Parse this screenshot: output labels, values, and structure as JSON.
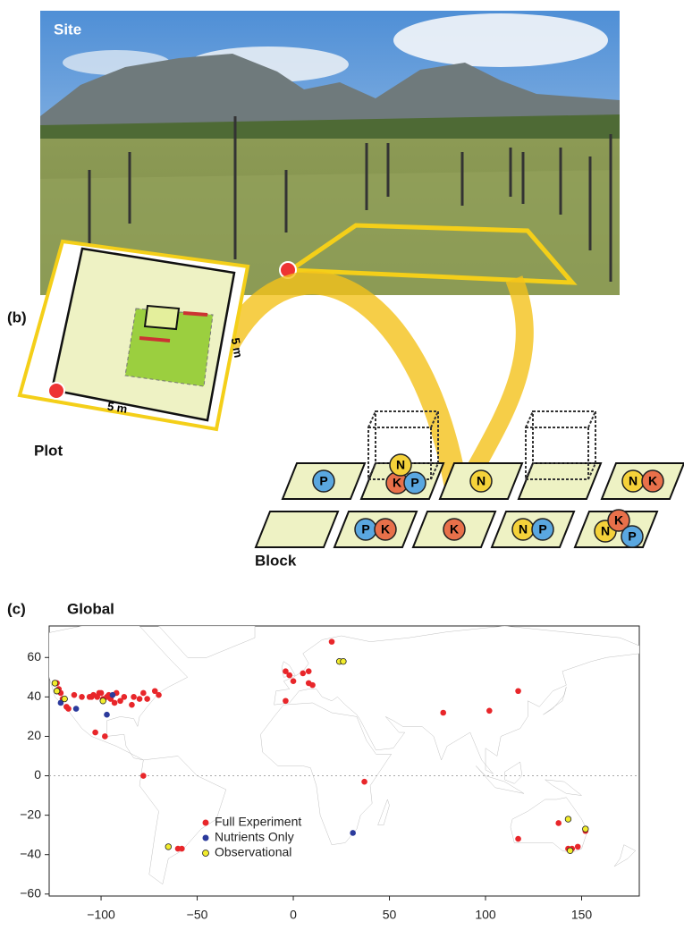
{
  "panel_a": {
    "label": "Site"
  },
  "panel_b": {
    "label": "(b)",
    "plot_label": "Plot",
    "plot_dims": [
      "5 m",
      "5 m"
    ],
    "block_label": "Block",
    "block_plots": [
      [
        "P"
      ],
      [
        "K",
        "N",
        "P"
      ],
      [
        "N"
      ],
      [],
      [
        "N",
        "K"
      ],
      [],
      [
        "P",
        "K"
      ],
      [
        "K"
      ],
      [
        "N",
        "P"
      ],
      [
        "N",
        "K",
        "P"
      ]
    ]
  },
  "chart_data": {
    "type": "scatter",
    "panel_label": "(c)",
    "title": "Global",
    "xlim": [
      -127,
      180
    ],
    "ylim": [
      -61,
      76
    ],
    "xticks": [
      {
        "value": -100,
        "label": "−100"
      },
      {
        "value": -50,
        "label": "−50"
      },
      0,
      50,
      100,
      150
    ],
    "yticks": [
      {
        "value": -60,
        "label": "−60"
      },
      {
        "value": -40,
        "label": "−40"
      },
      {
        "value": -20,
        "label": "−20"
      },
      0,
      20,
      40,
      60
    ],
    "legend": "lower-left",
    "series": [
      {
        "name": "Full Experiment",
        "color": "#e8262a",
        "x": [
          -123,
          -122,
          -121,
          -120,
          -118,
          -117,
          -114,
          -110,
          -106,
          -105,
          -104,
          -102,
          -101,
          -100,
          -99,
          -97,
          -96,
          -95,
          -93,
          -92,
          -90,
          -88,
          -84,
          -83,
          -80,
          -78,
          -76,
          -72,
          -70,
          -103,
          -98,
          -78,
          -58,
          -60,
          -4,
          -4,
          -2,
          0,
          5,
          8,
          8,
          10,
          20,
          37,
          78,
          102,
          117,
          117,
          138,
          143,
          145,
          148,
          152
        ],
        "values": [
          47,
          44,
          42,
          39,
          35,
          34,
          41,
          40,
          40,
          40,
          41,
          40,
          42,
          42,
          39,
          40,
          41,
          39,
          37,
          42,
          38,
          40,
          36,
          40,
          39,
          42,
          39,
          43,
          41,
          22,
          20,
          0,
          -37,
          -37,
          38,
          53,
          51,
          48,
          52,
          53,
          47,
          46,
          68,
          -3,
          32,
          33,
          43,
          -32,
          -24,
          -37,
          -37,
          -36,
          -28
        ]
      },
      {
        "name": "Nutrients Only",
        "color": "#2b3a9c",
        "x": [
          -113,
          -97,
          -94,
          -121,
          31
        ],
        "values": [
          34,
          31,
          41,
          37,
          -29
        ]
      },
      {
        "name": "Observational",
        "color": "#f2ec2c",
        "x": [
          -124,
          -123,
          -119,
          -99,
          -65,
          24,
          26,
          143,
          144,
          152
        ],
        "values": [
          47,
          43,
          39,
          38,
          -36,
          58,
          58,
          -22,
          -38,
          -27
        ]
      }
    ]
  }
}
